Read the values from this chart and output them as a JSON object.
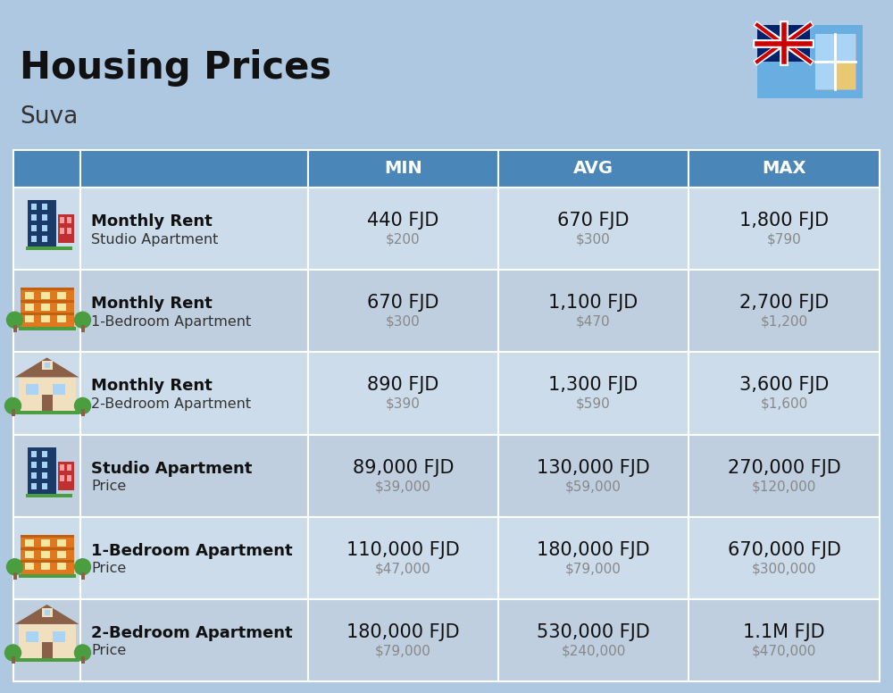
{
  "title": "Housing Prices",
  "subtitle": "Suva",
  "background_color": "#adc8e0",
  "header_color": "#4a86b8",
  "header_text_color": "#ffffff",
  "row_colors": [
    "#cddceb",
    "#bfcfdf"
  ],
  "col_headers": [
    "MIN",
    "AVG",
    "MAX"
  ],
  "rows": [
    {
      "bold_label": "Monthly Rent",
      "sub_label": "Studio Apartment",
      "icon_type": "blue_red",
      "min_fjd": "440 FJD",
      "min_usd": "$200",
      "avg_fjd": "670 FJD",
      "avg_usd": "$300",
      "max_fjd": "1,800 FJD",
      "max_usd": "$790"
    },
    {
      "bold_label": "Monthly Rent",
      "sub_label": "1-Bedroom Apartment",
      "icon_type": "orange",
      "min_fjd": "670 FJD",
      "min_usd": "$300",
      "avg_fjd": "1,100 FJD",
      "avg_usd": "$470",
      "max_fjd": "2,700 FJD",
      "max_usd": "$1,200"
    },
    {
      "bold_label": "Monthly Rent",
      "sub_label": "2-Bedroom Apartment",
      "icon_type": "beige",
      "min_fjd": "890 FJD",
      "min_usd": "$390",
      "avg_fjd": "1,300 FJD",
      "avg_usd": "$590",
      "max_fjd": "3,600 FJD",
      "max_usd": "$1,600"
    },
    {
      "bold_label": "Studio Apartment",
      "sub_label": "Price",
      "icon_type": "blue_red",
      "min_fjd": "89,000 FJD",
      "min_usd": "$39,000",
      "avg_fjd": "130,000 FJD",
      "avg_usd": "$59,000",
      "max_fjd": "270,000 FJD",
      "max_usd": "$120,000"
    },
    {
      "bold_label": "1-Bedroom Apartment",
      "sub_label": "Price",
      "icon_type": "orange",
      "min_fjd": "110,000 FJD",
      "min_usd": "$47,000",
      "avg_fjd": "180,000 FJD",
      "avg_usd": "$79,000",
      "max_fjd": "670,000 FJD",
      "max_usd": "$300,000"
    },
    {
      "bold_label": "2-Bedroom Apartment",
      "sub_label": "Price",
      "icon_type": "beige",
      "min_fjd": "180,000 FJD",
      "min_usd": "$79,000",
      "avg_fjd": "530,000 FJD",
      "avg_usd": "$240,000",
      "max_fjd": "1.1M FJD",
      "max_usd": "$470,000"
    }
  ],
  "title_fontsize": 30,
  "subtitle_fontsize": 19,
  "header_fontsize": 14,
  "cell_main_fontsize": 15,
  "cell_sub_fontsize": 11
}
